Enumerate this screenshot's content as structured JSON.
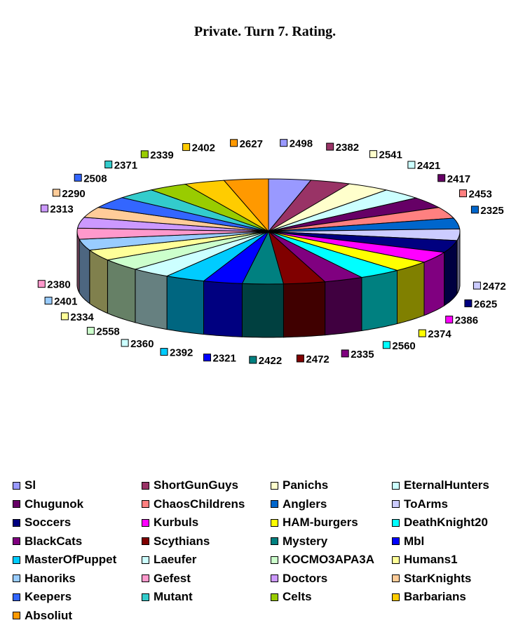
{
  "chart_data": {
    "type": "pie",
    "title": "Private. Turn 7. Rating.",
    "categories": [
      "Sl",
      "ShortGunGuys",
      "Panichs",
      "EternalHunters",
      "Chugunok",
      "ChaosChildrens",
      "Anglers",
      "ToArms",
      "Soccers",
      "Kurbuls",
      "HAM-burgers",
      "DeathKnight20",
      "BlackCats",
      "Scythians",
      "Mystery",
      "Mbl",
      "MasterOfPuppet",
      "Laeufer",
      "KOCMO3APA3A",
      "Humans1",
      "Hanoriks",
      "Gefest",
      "Doctors",
      "StarKnights",
      "Keepers",
      "Mutant",
      "Celts",
      "Barbarians",
      "Absoliut"
    ],
    "values": [
      2498,
      2382,
      2541,
      2421,
      2417,
      2453,
      2325,
      2472,
      2625,
      2386,
      2374,
      2560,
      2335,
      2472,
      2422,
      2321,
      2392,
      2360,
      2558,
      2334,
      2401,
      2380,
      2313,
      2290,
      2508,
      2371,
      2339,
      2402,
      2627
    ],
    "colors": [
      "#9999FF",
      "#993366",
      "#FFFFCC",
      "#CCFFFF",
      "#660066",
      "#FF8080",
      "#0066CC",
      "#CCCCFF",
      "#000080",
      "#FF00FF",
      "#FFFF00",
      "#00FFFF",
      "#800080",
      "#800000",
      "#008080",
      "#0000FF",
      "#00CCFF",
      "#CCFFFF",
      "#CCFFCC",
      "#FFFF99",
      "#99CCFF",
      "#FF99CC",
      "#CC99FF",
      "#FFCC99",
      "#3366FF",
      "#33CCCC",
      "#99CC00",
      "#FFCC00",
      "#FF9900"
    ],
    "legend_position": "bottom"
  }
}
